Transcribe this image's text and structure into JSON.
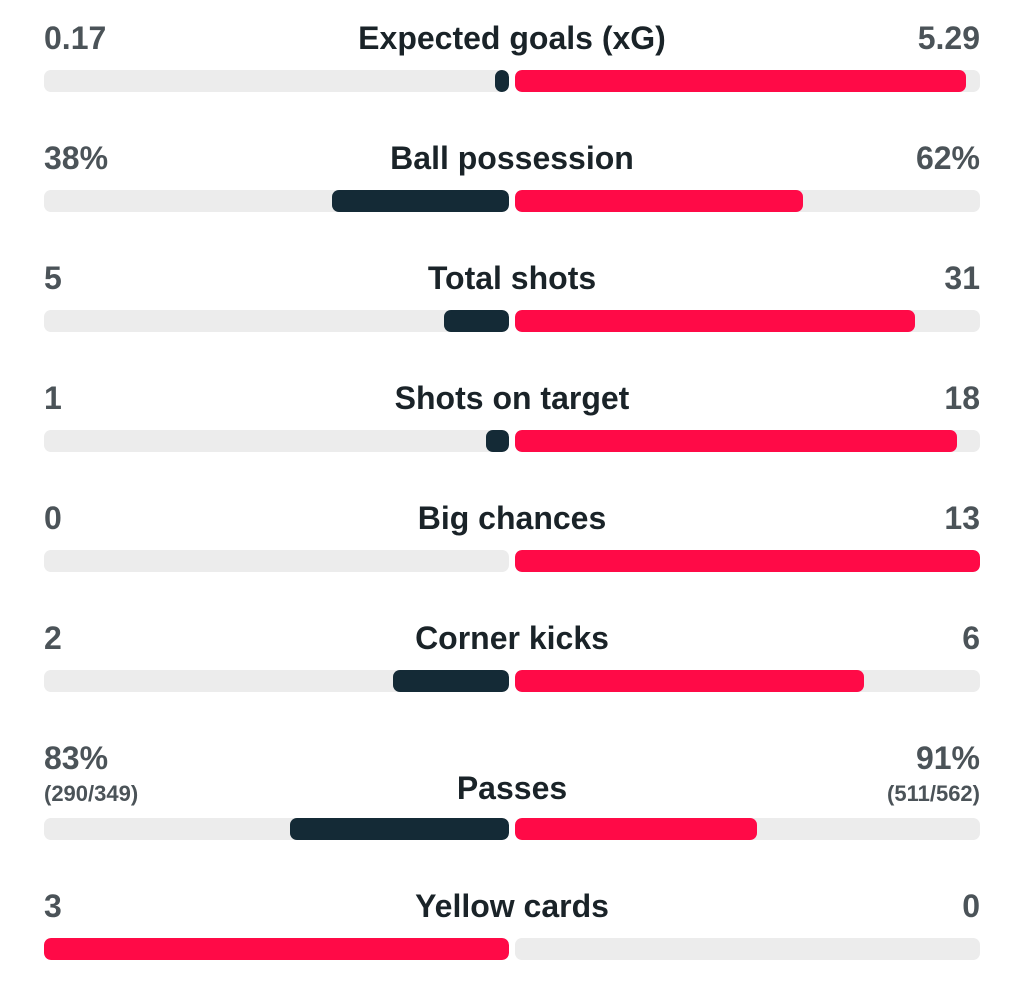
{
  "colors": {
    "home_highlight": "#142a36",
    "away_highlight": "#ff0a47",
    "track": "#ececec",
    "label_text": "#1a2328",
    "value_text": "#4b5358"
  },
  "stats": [
    {
      "label": "Expected goals (xG)",
      "home": "0.17",
      "away": "5.29",
      "home_share": 0.03,
      "away_share": 0.97,
      "home_color": "#142a36",
      "away_color": "#ff0a47"
    },
    {
      "label": "Ball possession",
      "home": "38%",
      "away": "62%",
      "home_share": 0.38,
      "away_share": 0.62,
      "home_color": "#142a36",
      "away_color": "#ff0a47"
    },
    {
      "label": "Total shots",
      "home": "5",
      "away": "31",
      "home_share": 0.14,
      "away_share": 0.86,
      "home_color": "#142a36",
      "away_color": "#ff0a47"
    },
    {
      "label": "Shots on target",
      "home": "1",
      "away": "18",
      "home_share": 0.05,
      "away_share": 0.95,
      "home_color": "#142a36",
      "away_color": "#ff0a47"
    },
    {
      "label": "Big chances",
      "home": "0",
      "away": "13",
      "home_share": 0.0,
      "away_share": 1.0,
      "home_color": "#142a36",
      "away_color": "#ff0a47"
    },
    {
      "label": "Corner kicks",
      "home": "2",
      "away": "6",
      "home_share": 0.25,
      "away_share": 0.75,
      "home_color": "#142a36",
      "away_color": "#ff0a47"
    },
    {
      "label": "Passes",
      "home": "83%",
      "away": "91%",
      "home_sub": "(290/349)",
      "away_sub": "(511/562)",
      "home_share": 0.47,
      "away_share": 0.52,
      "home_color": "#142a36",
      "away_color": "#ff0a47"
    },
    {
      "label": "Yellow cards",
      "home": "3",
      "away": "0",
      "home_share": 1.0,
      "away_share": 0.0,
      "home_color": "#ff0a47",
      "away_color": "#142a36"
    }
  ]
}
